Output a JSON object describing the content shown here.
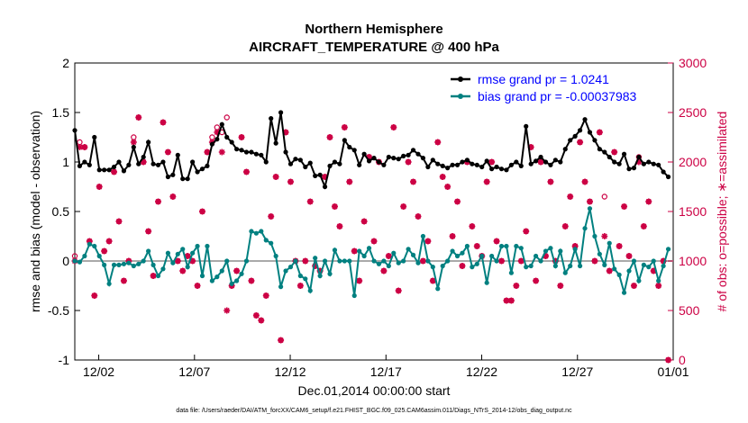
{
  "chart_data": {
    "type": "line",
    "title": "Northern Hemisphere",
    "subtitle": "AIRCRAFT_TEMPERATURE @ 400 hPa",
    "xlabel": "Dec.01,2014 00:00:00 start",
    "ylabel_left": "rmse and bias (model - observation)",
    "ylabel_right": "# of obs: o=possible; ∗=assimilated",
    "ylim_left": [
      -1,
      2
    ],
    "ylim_right": [
      0,
      3000
    ],
    "yticks_left": [
      "-1",
      "-0.5",
      "0",
      "0.5",
      "1",
      "1.5",
      "2"
    ],
    "yticks_right": [
      "0",
      "500",
      "1000",
      "1500",
      "2000",
      "2500",
      "3000"
    ],
    "xlim": [
      0.75,
      31.0
    ],
    "xticks": [
      {
        "x": 2,
        "label": "12/02"
      },
      {
        "x": 7,
        "label": "12/07"
      },
      {
        "x": 12,
        "label": "12/12"
      },
      {
        "x": 17,
        "label": "12/17"
      },
      {
        "x": 22,
        "label": "12/22"
      },
      {
        "x": 27,
        "label": "12/27"
      },
      {
        "x": 32,
        "label": "01/01"
      }
    ],
    "zero_line": 0,
    "legend": [
      {
        "label": "rmse grand pr = 1.0241",
        "color": "#000000",
        "text_color": "#0000ff"
      },
      {
        "label": "bias grand pr = -0.00037983",
        "color": "#008080",
        "text_color": "#0000ff"
      }
    ],
    "series": [
      {
        "name": "rmse",
        "color": "#000000",
        "values": [
          1.32,
          0.96,
          1.0,
          0.97,
          1.25,
          0.92,
          0.92,
          0.92,
          0.95,
          1.0,
          0.91,
          0.97,
          1.15,
          0.98,
          1.05,
          1.2,
          0.98,
          0.97,
          1.0,
          0.85,
          0.87,
          1.07,
          0.83,
          0.83,
          1.0,
          0.9,
          0.93,
          0.96,
          1.18,
          1.23,
          1.38,
          1.25,
          1.2,
          1.13,
          1.12,
          1.1,
          1.1,
          1.08,
          1.07,
          1.0,
          1.44,
          1.19,
          1.5,
          1.1,
          0.98,
          1.03,
          1.02,
          0.95,
          0.99,
          0.86,
          0.87,
          0.75,
          0.96,
          1.0,
          0.98,
          1.22,
          1.15,
          1.12,
          0.97,
          1.08,
          1.01,
          1.04,
          1.0,
          0.97,
          1.05,
          1.04,
          1.03,
          1.06,
          1.07,
          1.12,
          1.08,
          1.04,
          0.95,
          1.02,
          0.98,
          0.96,
          0.94,
          0.97,
          0.97,
          1.0,
          1.02,
          0.98,
          0.97,
          0.95,
          1.01,
          0.93,
          0.95,
          0.93,
          0.92,
          0.97,
          1.0,
          0.96,
          1.36,
          0.98,
          1.01,
          1.05,
          1.0,
          0.97,
          1.02,
          1.0,
          1.13,
          1.22,
          1.26,
          1.32,
          1.43,
          1.3,
          1.22,
          1.13,
          1.1,
          1.05,
          1.0,
          0.98,
          1.08,
          0.93,
          0.94,
          1.05,
          0.98,
          1.0,
          0.98,
          0.97,
          0.9,
          0.85
        ]
      },
      {
        "name": "bias",
        "color": "#008080",
        "values": [
          0.0,
          -0.01,
          0.05,
          0.17,
          0.15,
          0.05,
          -0.04,
          -0.23,
          -0.04,
          -0.04,
          -0.03,
          -0.02,
          -0.05,
          -0.03,
          0.0,
          0.1,
          -0.04,
          -0.15,
          -0.08,
          0.08,
          -0.02,
          0.07,
          0.12,
          -0.06,
          0.08,
          0.15,
          -0.15,
          0.15,
          -0.2,
          -0.16,
          -0.1,
          0.0,
          -0.23,
          -0.2,
          -0.13,
          0.0,
          0.3,
          0.28,
          0.3,
          0.21,
          0.18,
          0.05,
          -0.26,
          -0.1,
          -0.06,
          0.0,
          -0.15,
          -0.18,
          -0.3,
          0.03,
          -0.15,
          0.0,
          -0.13,
          0.11,
          0.0,
          0.0,
          0.0,
          -0.35,
          0.1,
          0.05,
          0.13,
          0.0,
          -0.03,
          0.0,
          -0.05,
          0.08,
          -0.02,
          0.0,
          0.12,
          0.06,
          -0.02,
          0.25,
          0.0,
          -0.06,
          -0.28,
          -0.05,
          0.0,
          0.1,
          0.05,
          0.08,
          0.15,
          -0.06,
          -0.03,
          0.05,
          -0.22,
          0.05,
          0.0,
          0.15,
          0.15,
          -0.12,
          0.15,
          0.13,
          -0.06,
          -0.05,
          0.05,
          0.0,
          0.1,
          0.13,
          -0.05,
          0.1,
          -0.12,
          -0.05,
          0.12,
          -0.05,
          0.33,
          0.53,
          0.25,
          0.07,
          -0.04,
          0.18,
          -0.08,
          -0.14,
          -0.32,
          -0.1,
          0.0,
          -0.2,
          -0.04,
          -0.06,
          0.0,
          -0.2,
          -0.05,
          0.12
        ]
      },
      {
        "name": "# obs assimilated",
        "axis": "right",
        "color": "#cc0044",
        "values": [
          1000,
          2150,
          2150,
          1200,
          650,
          1750,
          1100,
          1200,
          1900,
          1400,
          800,
          1000,
          2200,
          2450,
          2000,
          1300,
          850,
          1600,
          2400,
          2100,
          1650,
          1000,
          900,
          1050,
          1000,
          750,
          1500,
          2100,
          2200,
          2300,
          2100,
          500,
          750,
          900,
          2250,
          1900,
          800,
          450,
          400,
          650,
          1450,
          1850,
          200,
          2300,
          1800,
          1000,
          750,
          1000,
          1600,
          950,
          900,
          1850,
          2250,
          1550,
          1350,
          2350,
          1800,
          1100,
          800,
          1400,
          2050,
          1200,
          2000,
          900,
          1050,
          2350,
          700,
          1550,
          2000,
          1800,
          1450,
          1000,
          1200,
          800,
          2200,
          1850,
          1750,
          1250,
          1600,
          950,
          2000,
          1350,
          1150,
          1050,
          1800,
          2000,
          1200,
          1000,
          600,
          600,
          750,
          1000,
          1300,
          2150,
          800,
          2000,
          1050,
          1800,
          1000,
          750,
          1350,
          1650,
          1150,
          2200,
          1800,
          1600,
          1000,
          2300,
          1250,
          900,
          2100,
          1150,
          1550,
          1050,
          750,
          2000,
          1350,
          1600,
          900,
          750,
          1000,
          0
        ]
      },
      {
        "name": "# obs possible",
        "axis": "right",
        "color": "#cc0044",
        "marker": "circle",
        "values": [
          1050,
          2200,
          2150,
          1200,
          650,
          1750,
          1100,
          1200,
          1900,
          1400,
          800,
          1000,
          2250,
          2450,
          2000,
          1300,
          850,
          1600,
          2400,
          2100,
          1650,
          1000,
          900,
          1050,
          1000,
          750,
          1500,
          2100,
          2250,
          2350,
          2300,
          2450,
          750,
          900,
          2250,
          1900,
          800,
          450,
          400,
          650,
          1450,
          1850,
          200,
          2300,
          1800,
          1000,
          750,
          1000,
          1600,
          950,
          900,
          1850,
          2250,
          1550,
          1350,
          2350,
          1800,
          1100,
          800,
          1400,
          2050,
          1200,
          2000,
          900,
          1050,
          2350,
          700,
          1550,
          2000,
          1800,
          1450,
          1000,
          1200,
          800,
          2200,
          1850,
          1750,
          1250,
          1600,
          950,
          2000,
          1350,
          1150,
          1050,
          1800,
          2000,
          1200,
          1000,
          600,
          600,
          750,
          1000,
          1300,
          2150,
          800,
          2000,
          1050,
          1800,
          1000,
          750,
          1350,
          1650,
          1150,
          2200,
          1800,
          1600,
          1000,
          2300,
          1650,
          900,
          2100,
          1150,
          1550,
          1050,
          750,
          2050,
          1350,
          1600,
          900,
          750,
          1000,
          0
        ]
      }
    ],
    "footer": "data file: /Users/raeder/DAI/ATM_forcXX/CAM6_setup/f.e21.FHIST_BGC.f09_025.CAM6assim.011/Diags_NTrS_2014-12/obs_diag_output.nc"
  }
}
